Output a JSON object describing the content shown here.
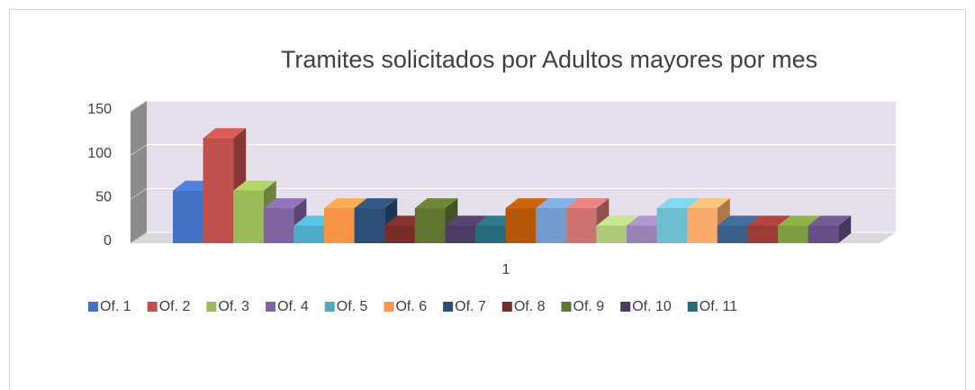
{
  "chart_data": {
    "type": "bar3d",
    "title": "Tramites solicitados por Adultos mayores por mes",
    "categories": [
      "1"
    ],
    "ylim": [
      0,
      150
    ],
    "yticks": [
      0,
      50,
      100,
      150
    ],
    "grid": true,
    "series": [
      {
        "name": "Of. 1",
        "color": "#4472c4",
        "values": [
          60
        ]
      },
      {
        "name": "Of. 2",
        "color": "#c0504d",
        "values": [
          120
        ]
      },
      {
        "name": "Of. 3",
        "color": "#9bbb59",
        "values": [
          60
        ]
      },
      {
        "name": "Of. 4",
        "color": "#8064a2",
        "values": [
          40
        ]
      },
      {
        "name": "Of. 5",
        "color": "#4bacc6",
        "values": [
          20
        ]
      },
      {
        "name": "Of. 6",
        "color": "#f79646",
        "values": [
          40
        ]
      },
      {
        "name": "Of. 7",
        "color": "#2c4d75",
        "values": [
          40
        ]
      },
      {
        "name": "Of. 8",
        "color": "#772c2a",
        "values": [
          20
        ]
      },
      {
        "name": "Of. 9",
        "color": "#5f7530",
        "values": [
          40
        ]
      },
      {
        "name": "Of. 10",
        "color": "#4d3b62",
        "values": [
          20
        ]
      },
      {
        "name": "Of. 11",
        "color": "#276a7c",
        "values": [
          20
        ]
      },
      {
        "color": "#b65708",
        "values": [
          40
        ]
      },
      {
        "color": "#729aca",
        "values": [
          40
        ]
      },
      {
        "color": "#cd7371",
        "values": [
          40
        ]
      },
      {
        "color": "#afc97a",
        "values": [
          20
        ]
      },
      {
        "color": "#9983b5",
        "values": [
          20
        ]
      },
      {
        "color": "#6fbdd1",
        "values": [
          40
        ]
      },
      {
        "color": "#f9ab6b",
        "values": [
          40
        ]
      },
      {
        "color": "#3a5f8b",
        "values": [
          20
        ]
      },
      {
        "color": "#9c3a38",
        "values": [
          20
        ]
      },
      {
        "color": "#7e9c40",
        "values": [
          20
        ]
      },
      {
        "color": "#664f83",
        "values": [
          20
        ]
      }
    ]
  }
}
